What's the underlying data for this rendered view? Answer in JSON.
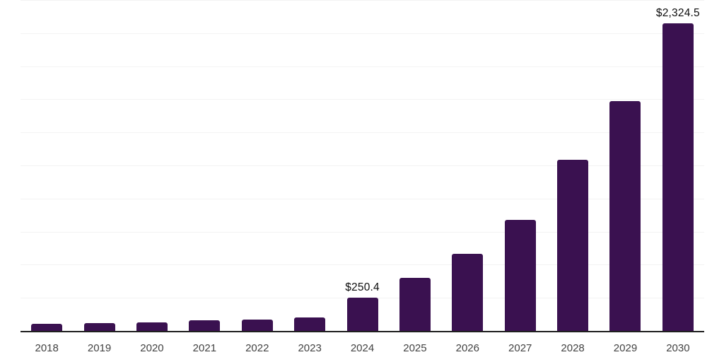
{
  "chart_data": {
    "type": "bar",
    "title": "",
    "xlabel": "",
    "ylabel": "",
    "categories": [
      "2018",
      "2019",
      "2020",
      "2021",
      "2022",
      "2023",
      "2024",
      "2025",
      "2026",
      "2027",
      "2028",
      "2029",
      "2030"
    ],
    "values": [
      53,
      60,
      64,
      79,
      87,
      103,
      250.4,
      402,
      583,
      837,
      1292,
      1739,
      2324.5
    ],
    "data_labels": [
      "",
      "",
      "",
      "",
      "",
      "",
      "$250.4",
      "",
      "",
      "",
      "",
      "",
      "$2,324.5"
    ],
    "ylim": [
      0,
      2500
    ],
    "gridline_step": 250,
    "grid": true,
    "legend": false,
    "colors": {
      "bar": "#3a1150",
      "gridline": "#f3f3f3",
      "axis_line": "#1f1f1f",
      "tick_label": "#424242",
      "data_label": "#0d0d0d",
      "background": "#ffffff"
    }
  }
}
